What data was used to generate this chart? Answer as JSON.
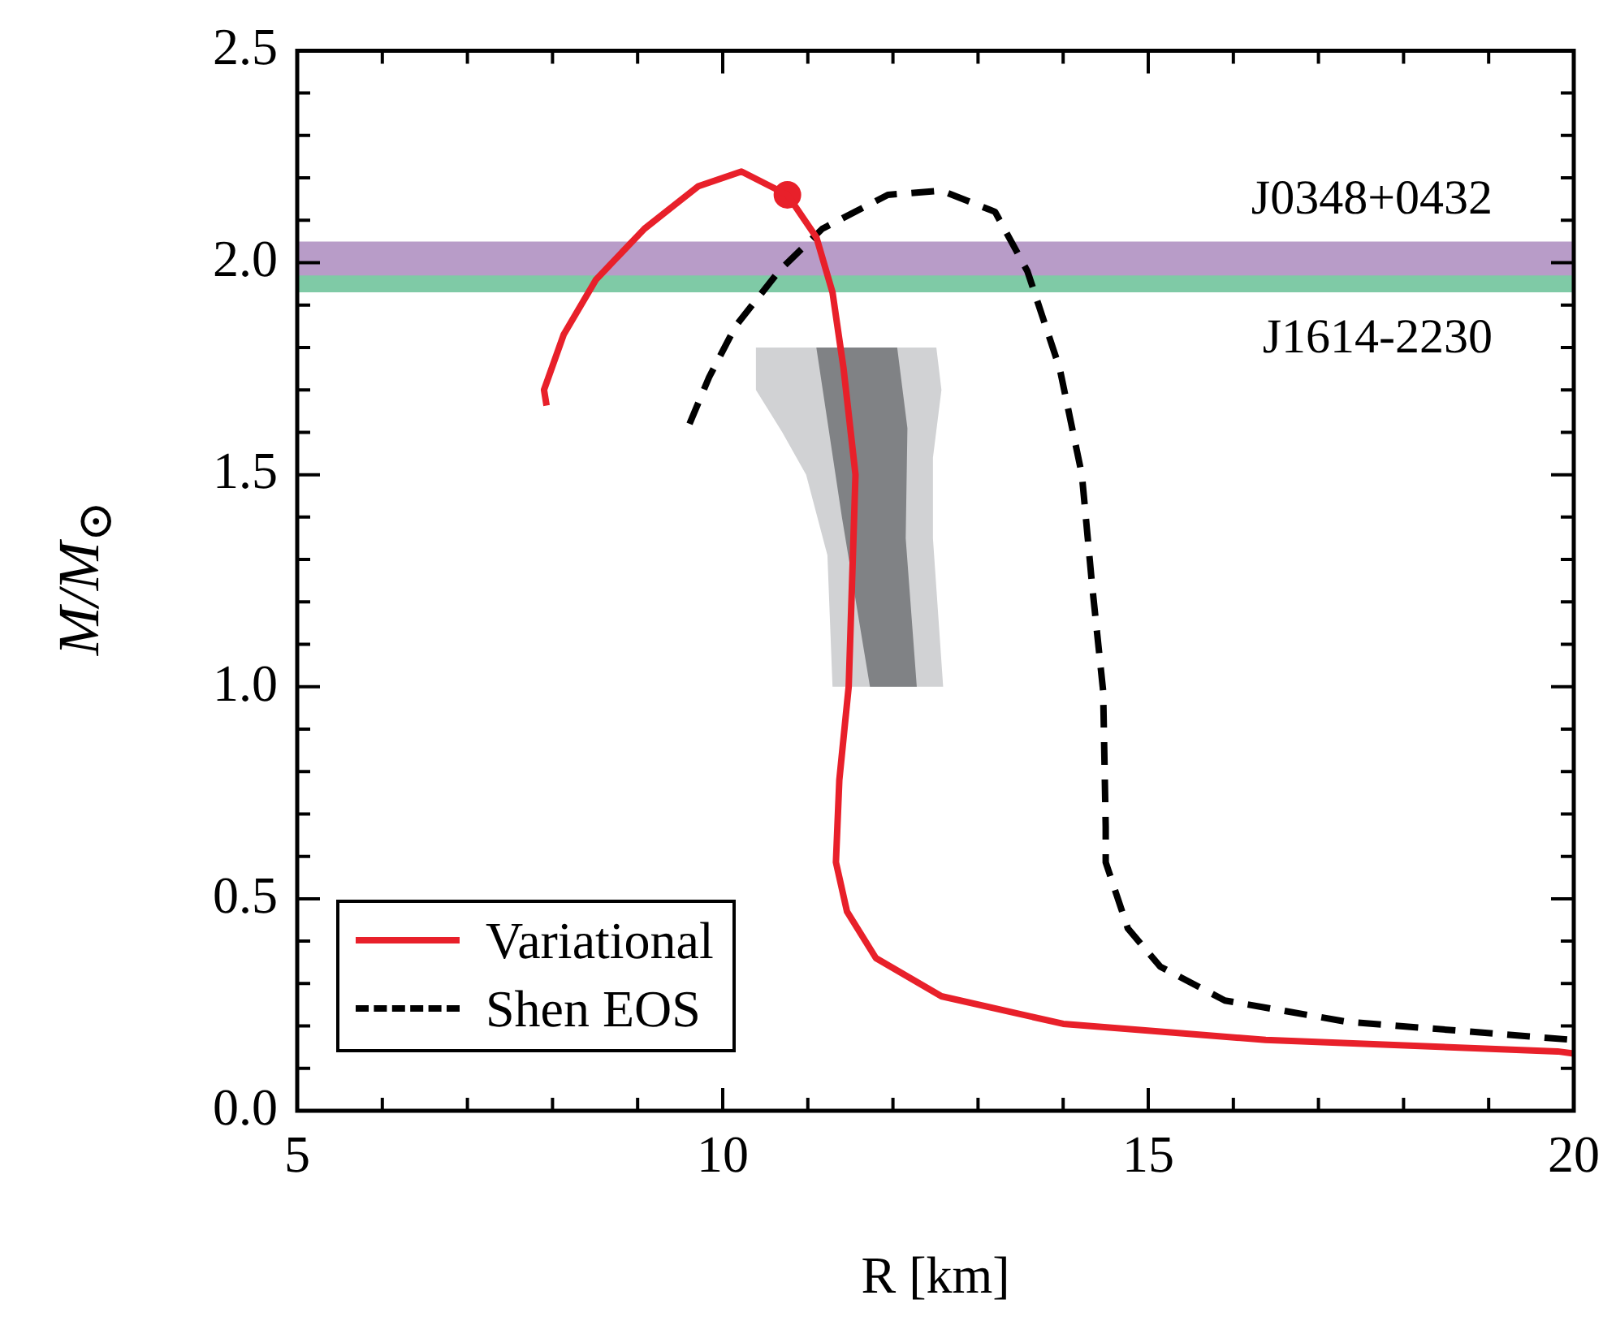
{
  "chart_data": {
    "type": "line",
    "xlabel": "R [km]",
    "ylabel": "M/M$_{⊙}$",
    "xlim": [
      5,
      20
    ],
    "ylim": [
      0,
      2.5
    ],
    "xticks": [
      {
        "value": 5,
        "label": "5"
      },
      {
        "value": 6,
        "label": null
      },
      {
        "value": 7,
        "label": null
      },
      {
        "value": 8,
        "label": null
      },
      {
        "value": 9,
        "label": null
      },
      {
        "value": 10,
        "label": "10"
      },
      {
        "value": 11,
        "label": null
      },
      {
        "value": 12,
        "label": null
      },
      {
        "value": 13,
        "label": null
      },
      {
        "value": 14,
        "label": null
      },
      {
        "value": 15,
        "label": "15"
      },
      {
        "value": 16,
        "label": null
      },
      {
        "value": 17,
        "label": null
      },
      {
        "value": 18,
        "label": null
      },
      {
        "value": 19,
        "label": null
      },
      {
        "value": 20,
        "label": "20"
      }
    ],
    "yticks": [
      {
        "value": 0,
        "label": "0.0"
      },
      {
        "value": 0.1,
        "label": null
      },
      {
        "value": 0.2,
        "label": null
      },
      {
        "value": 0.3,
        "label": null
      },
      {
        "value": 0.4,
        "label": null
      },
      {
        "value": 0.5,
        "label": "0.5"
      },
      {
        "value": 0.6,
        "label": null
      },
      {
        "value": 0.7,
        "label": null
      },
      {
        "value": 0.8,
        "label": null
      },
      {
        "value": 0.9,
        "label": null
      },
      {
        "value": 1,
        "label": "1.0"
      },
      {
        "value": 1.1,
        "label": null
      },
      {
        "value": 1.2,
        "label": null
      },
      {
        "value": 1.3,
        "label": null
      },
      {
        "value": 1.4,
        "label": null
      },
      {
        "value": 1.5,
        "label": "1.5"
      },
      {
        "value": 1.6,
        "label": null
      },
      {
        "value": 1.7,
        "label": null
      },
      {
        "value": 1.8,
        "label": null
      },
      {
        "value": 1.9,
        "label": null
      },
      {
        "value": 2,
        "label": "2.0"
      },
      {
        "value": 2.1,
        "label": null
      },
      {
        "value": 2.2,
        "label": null
      },
      {
        "value": 2.3,
        "label": null
      },
      {
        "value": 2.4,
        "label": null
      },
      {
        "value": 2.5,
        "label": "2.5"
      }
    ],
    "bands": [
      {
        "axis": "y",
        "from": 1.93,
        "to": 2.01,
        "label": "J1614-2230",
        "color": "#7fcaa6"
      },
      {
        "axis": "y",
        "from": 1.97,
        "to": 2.05,
        "label": "J0348+0432",
        "color": "#b89cc8"
      }
    ],
    "series": [
      {
        "type": "area",
        "color": "#d1d2d4",
        "x": [
          10.39,
          10.39,
          10.7,
          10.98,
          11.23,
          11.29,
          12.59,
          12.47,
          12.47,
          12.57,
          12.51
        ],
        "values": [
          1.8,
          1.7,
          1.6,
          1.5,
          1.31,
          1.0,
          1.0,
          1.35,
          1.54,
          1.7,
          1.8
        ]
      },
      {
        "type": "area",
        "color": "#808285",
        "x": [
          11.1,
          11.4,
          11.73,
          12.28,
          12.15,
          12.17,
          12.05
        ],
        "values": [
          1.8,
          1.4,
          1.0,
          1.0,
          1.35,
          1.61,
          1.8
        ]
      },
      {
        "name": "Variational",
        "color": "#e8202a",
        "line_style": "solid",
        "x": [
          7.93,
          7.9,
          8.13,
          8.51,
          9.08,
          9.71,
          10.22,
          10.76,
          11.1,
          11.29,
          11.42,
          11.56,
          11.48,
          11.37,
          11.33,
          11.46,
          11.8,
          12.57,
          14.0,
          16.38,
          19.81,
          20
        ],
        "values": [
          1.663,
          1.7,
          1.83,
          1.96,
          2.08,
          2.18,
          2.215,
          2.16,
          2.06,
          1.93,
          1.75,
          1.5,
          1.0,
          0.78,
          0.586,
          0.47,
          0.36,
          0.27,
          0.205,
          0.167,
          0.14,
          0.135
        ]
      },
      {
        "name": "Shen EOS",
        "color": "#000000",
        "line_style": "dashed",
        "x": [
          9.61,
          9.84,
          10.15,
          10.66,
          11.17,
          11.94,
          12.57,
          13.2,
          13.58,
          13.96,
          14.22,
          14.34,
          14.47,
          14.5,
          14.5,
          14.76,
          15.14,
          15.9,
          17.33,
          20
        ],
        "values": [
          1.62,
          1.73,
          1.85,
          1.98,
          2.08,
          2.16,
          2.17,
          2.12,
          1.98,
          1.75,
          1.5,
          1.24,
          0.99,
          0.67,
          0.586,
          0.43,
          0.34,
          0.26,
          0.21,
          0.167
        ]
      },
      {
        "type": "scatter",
        "color": "#e8202a",
        "marker": "circle",
        "x": [
          10.76
        ],
        "values": [
          2.16
        ]
      }
    ],
    "legend": "bottom left",
    "grid": false
  }
}
